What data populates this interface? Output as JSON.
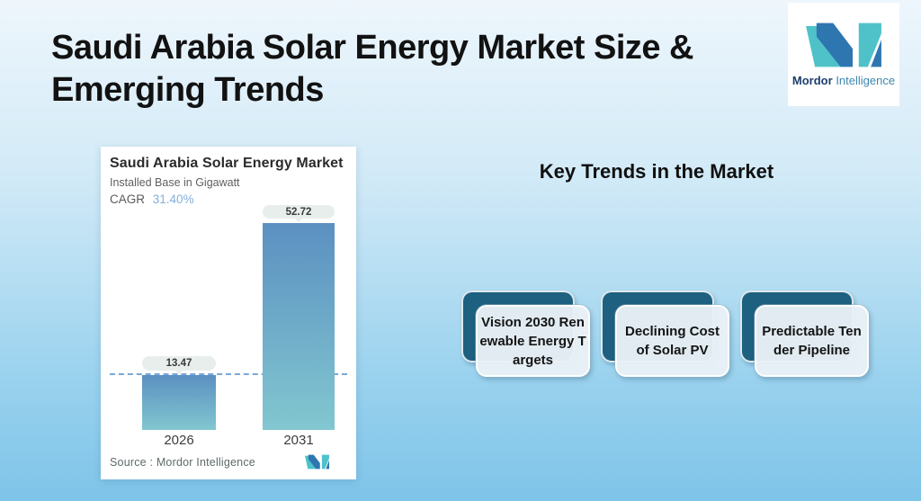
{
  "page": {
    "title": "Saudi Arabia Solar Energy Market Size &\nEmerging Trends",
    "background_top_color": "#eef6fc",
    "background_bottom_color": "#7ec4e9"
  },
  "brand": {
    "name_bold": "Mordor",
    "name_light": "Intelligence",
    "logo_teal": "#4fc2c9",
    "logo_blue": "#2e76b0"
  },
  "right_panel": {
    "heading": "Key Trends in the Market",
    "card_back_color": "#1e6080",
    "card_front_color": "#e9f0f6",
    "trends": [
      {
        "label": "Vision 2030 Ren\newable Energy T\nargets"
      },
      {
        "label": "Declining Cost\nof Solar PV"
      },
      {
        "label": "Predictable Ten\nder Pipeline"
      }
    ]
  },
  "chart_data": {
    "type": "bar",
    "title": "Saudi Arabia Solar Energy Market",
    "subtitle": "Installed Base in Gigawatt",
    "cagr_label": "CAGR",
    "cagr_value": "31.40%",
    "categories": [
      "2026",
      "2031"
    ],
    "values": [
      13.47,
      52.72
    ],
    "value_labels": [
      "13.47",
      "52.72"
    ],
    "ylabel": "Installed Base in Gigawatt",
    "ylim": [
      0,
      55
    ],
    "reference_line_value": 13.47,
    "reference_line_style": "dashed",
    "grid": false,
    "legend": false,
    "bar_color_top": "#5b90c1",
    "bar_color_bottom": "#82c7d0",
    "source": "Source :  Mordor Intelligence"
  }
}
